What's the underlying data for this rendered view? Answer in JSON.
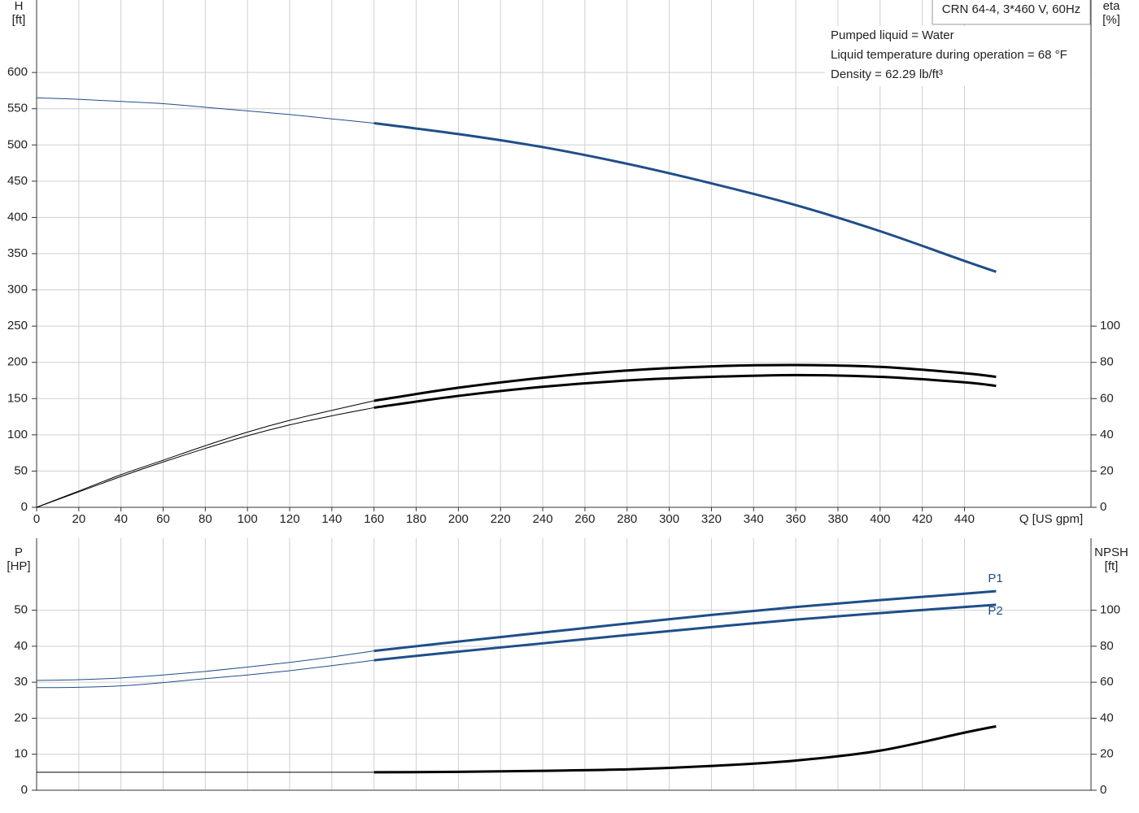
{
  "chart_data": [
    {
      "type": "line",
      "title": "CRN 64-4, 3*460 V, 60Hz",
      "annotations": [
        "Pumped liquid = Water",
        "Liquid temperature during operation = 68 °F",
        "Density = 62.29 lb/ft³"
      ],
      "y_label": [
        "H",
        "[ft]"
      ],
      "y2_label": [
        "eta",
        "[%]"
      ],
      "x_label": "Q [US gpm]",
      "xlim": [
        0,
        500
      ],
      "xticks": [
        0,
        20,
        40,
        60,
        80,
        100,
        120,
        140,
        160,
        180,
        200,
        220,
        240,
        260,
        280,
        300,
        320,
        340,
        360,
        380,
        400,
        420,
        440
      ],
      "ylim": [
        0,
        700
      ],
      "yticks": [
        0,
        50,
        100,
        150,
        200,
        250,
        300,
        350,
        400,
        450,
        500,
        550,
        600
      ],
      "y2lim": [
        0,
        280
      ],
      "y2ticks": [
        0,
        20,
        40,
        60,
        80,
        100
      ],
      "grid": true,
      "bold_from_x": 160,
      "x": [
        0,
        20,
        40,
        60,
        80,
        100,
        120,
        140,
        160,
        200,
        240,
        280,
        320,
        360,
        400,
        440,
        455
      ],
      "series": [
        {
          "color": "#1f4e89",
          "values": [
            565,
            563,
            560,
            557,
            552,
            547,
            542,
            536,
            530,
            515,
            497,
            474,
            447,
            417,
            381,
            340,
            325
          ]
        },
        {
          "color": "#000000",
          "axis": "y2",
          "values": [
            0,
            9,
            18,
            26,
            34,
            41.5,
            48,
            53.5,
            58.8,
            66,
            71.5,
            75.5,
            77.8,
            78.5,
            77.5,
            74,
            72
          ]
        },
        {
          "color": "#000000",
          "axis": "y2",
          "values": [
            0,
            8.5,
            17,
            25,
            32.5,
            39.5,
            45.5,
            50.5,
            55,
            61.5,
            66.5,
            70,
            72,
            73,
            72,
            69,
            67
          ]
        }
      ]
    },
    {
      "type": "line",
      "y_label": [
        "P",
        "[HP]"
      ],
      "y2_label": [
        "NPSH",
        "[ft]"
      ],
      "xlim": [
        0,
        500
      ],
      "ylim": [
        0,
        70
      ],
      "yticks": [
        0,
        10,
        20,
        30,
        40,
        50
      ],
      "y2lim": [
        0,
        140
      ],
      "y2ticks": [
        0,
        20,
        40,
        60,
        80,
        100
      ],
      "grid": true,
      "bold_from_x": 160,
      "x": [
        0,
        20,
        40,
        60,
        80,
        100,
        120,
        140,
        160,
        200,
        240,
        280,
        320,
        360,
        400,
        440,
        455
      ],
      "series": [
        {
          "name": "P1",
          "color": "#1f4e89",
          "values": [
            30.5,
            30.7,
            31.2,
            32,
            33,
            34.2,
            35.5,
            37,
            38.7,
            41.3,
            43.8,
            46.3,
            48.7,
            50.9,
            52.8,
            54.6,
            55.3
          ]
        },
        {
          "name": "P2",
          "color": "#1f4e89",
          "values": [
            28.5,
            28.6,
            29,
            29.9,
            31,
            32,
            33.2,
            34.6,
            36.1,
            38.5,
            40.8,
            43.1,
            45.3,
            47.4,
            49.2,
            50.9,
            51.5
          ]
        },
        {
          "color": "#000000",
          "axis": "y2",
          "values": [
            10,
            10,
            10,
            10,
            10,
            10,
            10,
            10,
            10,
            10.2,
            10.8,
            11.6,
            13.5,
            16.5,
            22,
            32,
            35.5
          ]
        }
      ]
    }
  ]
}
